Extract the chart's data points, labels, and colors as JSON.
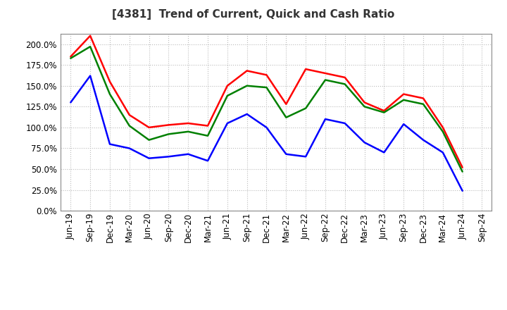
{
  "title": "[4381]  Trend of Current, Quick and Cash Ratio",
  "x_labels": [
    "Jun-19",
    "Sep-19",
    "Dec-19",
    "Mar-20",
    "Jun-20",
    "Sep-20",
    "Dec-20",
    "Mar-21",
    "Jun-21",
    "Sep-21",
    "Dec-21",
    "Mar-22",
    "Jun-22",
    "Sep-22",
    "Dec-22",
    "Mar-23",
    "Jun-23",
    "Sep-23",
    "Dec-23",
    "Mar-24",
    "Jun-24",
    "Sep-24"
  ],
  "current_ratio": [
    185,
    210,
    155,
    115,
    100,
    103,
    105,
    102,
    150,
    168,
    163,
    128,
    170,
    165,
    160,
    130,
    120,
    140,
    135,
    100,
    52,
    null
  ],
  "quick_ratio": [
    183,
    197,
    140,
    102,
    85,
    92,
    95,
    90,
    138,
    150,
    148,
    112,
    123,
    157,
    152,
    125,
    118,
    133,
    128,
    95,
    47,
    null
  ],
  "cash_ratio": [
    130,
    162,
    80,
    75,
    63,
    65,
    68,
    60,
    105,
    116,
    100,
    68,
    65,
    110,
    105,
    82,
    70,
    104,
    85,
    70,
    24,
    null
  ],
  "ylim": [
    0,
    212
  ],
  "yticks": [
    0,
    25,
    50,
    75,
    100,
    125,
    150,
    175,
    200
  ],
  "current_color": "#ff0000",
  "quick_color": "#008000",
  "cash_color": "#0000ff",
  "background_color": "#ffffff",
  "plot_bg_color": "#ffffff",
  "grid_color": "#bbbbbb",
  "line_width": 1.8,
  "title_fontsize": 11,
  "tick_fontsize": 8.5,
  "legend_fontsize": 9
}
